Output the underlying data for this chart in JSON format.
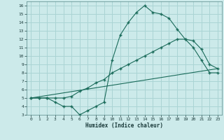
{
  "xlabel": "Humidex (Indice chaleur)",
  "bg_color": "#cceaea",
  "grid_color": "#aad4d4",
  "line_color": "#1a6b5a",
  "xlim": [
    -0.5,
    23.5
  ],
  "ylim": [
    3,
    16.5
  ],
  "xticks": [
    0,
    1,
    2,
    3,
    4,
    5,
    6,
    7,
    8,
    9,
    10,
    11,
    12,
    13,
    14,
    15,
    16,
    17,
    18,
    19,
    20,
    21,
    22,
    23
  ],
  "yticks": [
    3,
    4,
    5,
    6,
    7,
    8,
    9,
    10,
    11,
    12,
    13,
    14,
    15,
    16
  ],
  "line1_x": [
    0,
    1,
    2,
    3,
    4,
    5,
    6,
    7,
    8,
    9,
    10,
    11,
    12,
    13,
    14,
    15,
    16,
    17,
    18,
    19,
    20,
    21,
    22,
    23
  ],
  "line1_y": [
    5,
    5,
    5,
    4.5,
    4,
    4,
    3,
    3.5,
    4,
    4.5,
    9.5,
    12.5,
    14,
    15.2,
    16,
    15.2,
    15,
    14.5,
    13.2,
    12,
    11,
    9.5,
    8,
    8
  ],
  "line2_x": [
    0,
    1,
    2,
    3,
    4,
    5,
    6,
    7,
    8,
    9,
    10,
    11,
    12,
    13,
    14,
    15,
    16,
    17,
    18,
    19,
    20,
    21,
    22,
    23
  ],
  "line2_y": [
    5,
    5,
    5,
    5,
    5,
    5.2,
    5.8,
    6.2,
    6.8,
    7.2,
    8,
    8.5,
    9,
    9.5,
    10,
    10.5,
    11,
    11.5,
    12,
    12,
    11.8,
    10.8,
    9,
    8.5
  ],
  "line3_x": [
    0,
    23
  ],
  "line3_y": [
    5,
    8.5
  ]
}
